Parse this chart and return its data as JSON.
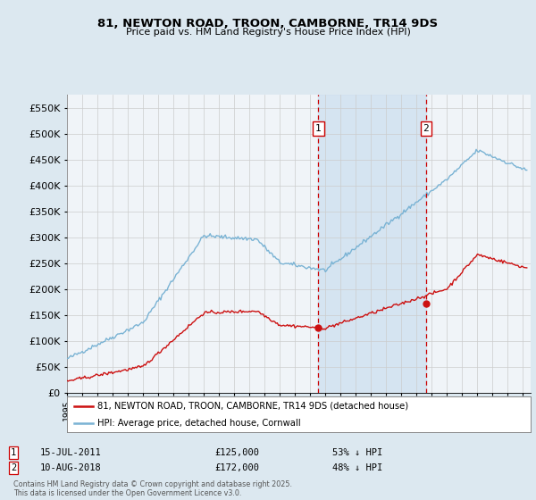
{
  "title": "81, NEWTON ROAD, TROON, CAMBORNE, TR14 9DS",
  "subtitle": "Price paid vs. HM Land Registry's House Price Index (HPI)",
  "ytick_values": [
    0,
    50000,
    100000,
    150000,
    200000,
    250000,
    300000,
    350000,
    400000,
    450000,
    500000,
    550000
  ],
  "ylim": [
    0,
    575000
  ],
  "xlim_start": 1995.0,
  "xlim_end": 2025.5,
  "marker1_x": 2011.54,
  "marker1_y": 125000,
  "marker1_label": "1",
  "marker1_date": "15-JUL-2011",
  "marker1_price": "£125,000",
  "marker1_hpi": "53% ↓ HPI",
  "marker2_x": 2018.61,
  "marker2_y": 172000,
  "marker2_label": "2",
  "marker2_date": "10-AUG-2018",
  "marker2_price": "£172,000",
  "marker2_hpi": "48% ↓ HPI",
  "hpi_color": "#7ab3d4",
  "price_color": "#cc1111",
  "background_color": "#dce8f0",
  "plot_bg_color": "#f0f4f8",
  "shade_color": "#cfe0f0",
  "grid_color": "#cccccc",
  "legend_label_price": "81, NEWTON ROAD, TROON, CAMBORNE, TR14 9DS (detached house)",
  "legend_label_hpi": "HPI: Average price, detached house, Cornwall",
  "footer": "Contains HM Land Registry data © Crown copyright and database right 2025.\nThis data is licensed under the Open Government Licence v3.0."
}
